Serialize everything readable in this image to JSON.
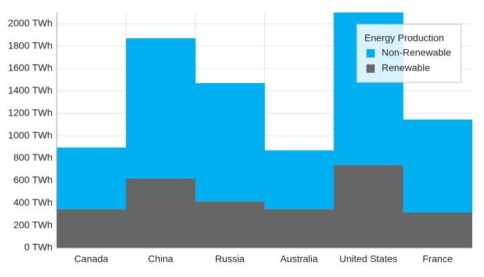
{
  "chart_data": {
    "type": "stacked-step-area",
    "categories": [
      "Canada",
      "China",
      "Russia",
      "Australia",
      "United States",
      "France"
    ],
    "series": [
      {
        "name": "Non-Renewable",
        "color": "#00b0f0",
        "values": [
          550,
          1250,
          1055,
          525,
          1460,
          830
        ]
      },
      {
        "name": "Renewable",
        "color": "#666666",
        "values": [
          345,
          620,
          415,
          345,
          740,
          315
        ]
      }
    ],
    "legend_title": "Energy Production",
    "ylim": [
      0,
      2100
    ],
    "yticks": [
      {
        "value": 0,
        "label": "0 TWh"
      },
      {
        "value": 200,
        "label": "200 TWh"
      },
      {
        "value": 400,
        "label": "400 TWh"
      },
      {
        "value": 600,
        "label": "600 TWh"
      },
      {
        "value": 800,
        "label": "800 TWh"
      },
      {
        "value": 1000,
        "label": "1000 TWh"
      },
      {
        "value": 1200,
        "label": "1200 TWh"
      },
      {
        "value": 1400,
        "label": "1400 TWh"
      },
      {
        "value": 1600,
        "label": "1600 TWh"
      },
      {
        "value": 1800,
        "label": "1800 TWh"
      },
      {
        "value": 2000,
        "label": "2000 TWh"
      }
    ],
    "grid": true,
    "legend_position": "top-right"
  }
}
